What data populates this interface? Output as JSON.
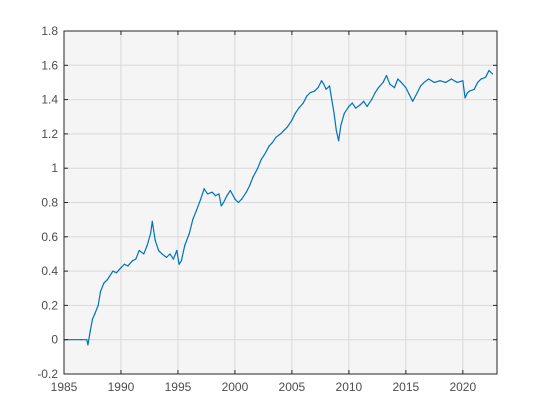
{
  "chart_data": {
    "type": "line",
    "title": "",
    "xlabel": "",
    "ylabel": "",
    "xlim": [
      1985,
      2023
    ],
    "ylim": [
      -0.2,
      1.8
    ],
    "grid": true,
    "xticks": [
      1985,
      1990,
      1995,
      2000,
      2005,
      2010,
      2015,
      2020
    ],
    "yticks": [
      -0.2,
      0,
      0.2,
      0.4,
      0.6,
      0.8,
      1,
      1.2,
      1.4,
      1.6,
      1.8
    ],
    "xtick_labels": [
      "1985",
      "1990",
      "1995",
      "2000",
      "2005",
      "2010",
      "2015",
      "2020"
    ],
    "ytick_labels": [
      "-0.2",
      "0",
      "0.2",
      "0.4",
      "0.6",
      "0.8",
      "1",
      "1.2",
      "1.4",
      "1.6",
      "1.8"
    ],
    "series": [
      {
        "color": "#0072BD",
        "x": [
          1985.0,
          1986.5,
          1987.0,
          1987.1,
          1987.3,
          1987.5,
          1987.7,
          1988.0,
          1988.2,
          1988.5,
          1988.8,
          1989.0,
          1989.3,
          1989.6,
          1990.0,
          1990.3,
          1990.6,
          1991.0,
          1991.3,
          1991.6,
          1992.0,
          1992.3,
          1992.6,
          1992.75,
          1993.0,
          1993.3,
          1993.6,
          1994.0,
          1994.3,
          1994.6,
          1994.9,
          1995.1,
          1995.3,
          1995.6,
          1996.0,
          1996.3,
          1996.6,
          1997.0,
          1997.3,
          1997.6,
          1998.0,
          1998.3,
          1998.6,
          1998.8,
          1999.0,
          1999.3,
          1999.6,
          2000.0,
          2000.3,
          2000.6,
          2001.0,
          2001.3,
          2001.6,
          2002.0,
          2002.3,
          2002.6,
          2003.0,
          2003.3,
          2003.6,
          2004.0,
          2004.3,
          2004.6,
          2005.0,
          2005.3,
          2005.6,
          2006.0,
          2006.3,
          2006.6,
          2007.0,
          2007.3,
          2007.6,
          2007.8,
          2008.0,
          2008.3,
          2008.5,
          2008.7,
          2008.9,
          2009.1,
          2009.3,
          2009.6,
          2010.0,
          2010.3,
          2010.6,
          2011.0,
          2011.3,
          2011.6,
          2012.0,
          2012.3,
          2012.6,
          2013.0,
          2013.3,
          2013.6,
          2014.0,
          2014.3,
          2014.6,
          2015.0,
          2015.3,
          2015.6,
          2016.0,
          2016.3,
          2016.6,
          2017.0,
          2017.5,
          2018.0,
          2018.5,
          2019.0,
          2019.5,
          2020.0,
          2020.2,
          2020.4,
          2020.6,
          2021.0,
          2021.3,
          2021.6,
          2022.0,
          2022.3,
          2022.6
        ],
        "y": [
          0.0,
          0.0,
          0.0,
          -0.03,
          0.05,
          0.12,
          0.15,
          0.2,
          0.28,
          0.33,
          0.35,
          0.37,
          0.4,
          0.39,
          0.42,
          0.44,
          0.43,
          0.46,
          0.47,
          0.52,
          0.5,
          0.55,
          0.62,
          0.69,
          0.58,
          0.52,
          0.5,
          0.48,
          0.5,
          0.47,
          0.52,
          0.44,
          0.46,
          0.55,
          0.62,
          0.7,
          0.75,
          0.82,
          0.88,
          0.85,
          0.86,
          0.84,
          0.85,
          0.78,
          0.8,
          0.84,
          0.87,
          0.82,
          0.8,
          0.82,
          0.86,
          0.9,
          0.95,
          1.0,
          1.05,
          1.08,
          1.13,
          1.15,
          1.18,
          1.2,
          1.22,
          1.24,
          1.28,
          1.32,
          1.35,
          1.38,
          1.42,
          1.44,
          1.45,
          1.47,
          1.51,
          1.49,
          1.46,
          1.48,
          1.4,
          1.32,
          1.22,
          1.16,
          1.25,
          1.32,
          1.36,
          1.38,
          1.35,
          1.37,
          1.39,
          1.36,
          1.4,
          1.44,
          1.47,
          1.5,
          1.54,
          1.49,
          1.47,
          1.52,
          1.5,
          1.47,
          1.43,
          1.39,
          1.44,
          1.48,
          1.5,
          1.52,
          1.5,
          1.51,
          1.5,
          1.52,
          1.5,
          1.51,
          1.41,
          1.44,
          1.45,
          1.46,
          1.5,
          1.52,
          1.53,
          1.57,
          1.55
        ]
      }
    ]
  }
}
